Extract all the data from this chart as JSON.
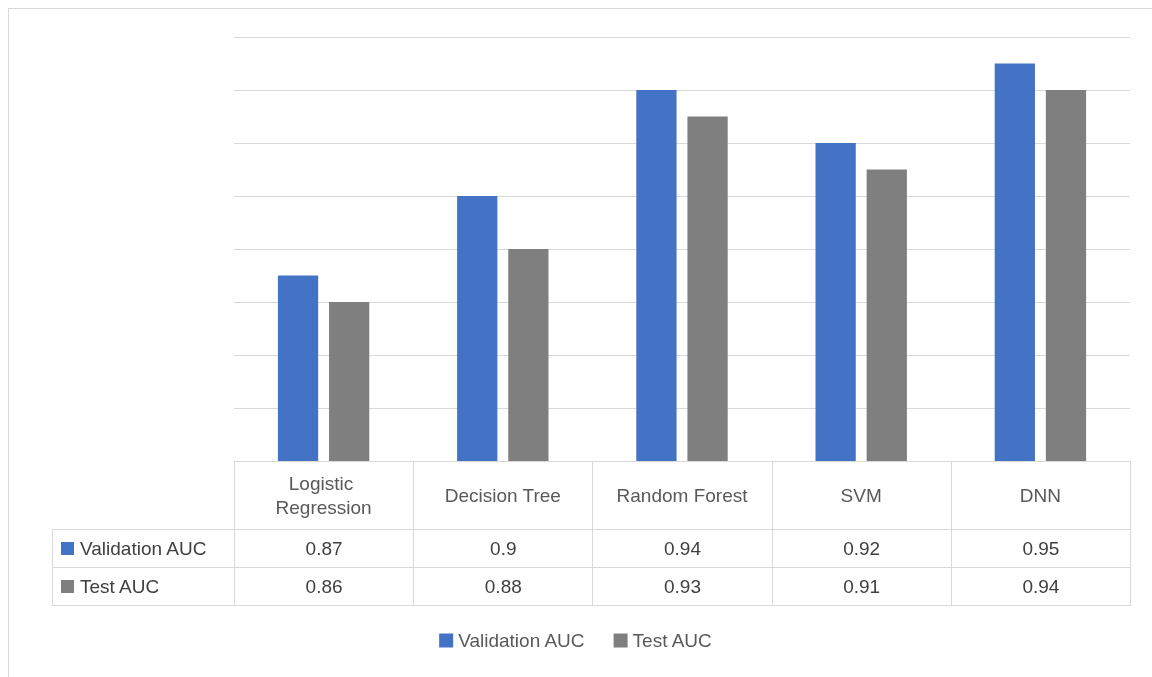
{
  "chart_data": {
    "type": "bar",
    "categories": [
      "Logistic Regression",
      "Decision Tree",
      "Random Forest",
      "SVM",
      "DNN"
    ],
    "series": [
      {
        "name": "Validation AUC",
        "color": "#4472c4",
        "values": [
          0.87,
          0.9,
          0.94,
          0.92,
          0.95
        ]
      },
      {
        "name": "Test AUC",
        "color": "#7f7f7f",
        "values": [
          0.86,
          0.88,
          0.93,
          0.91,
          0.94
        ]
      }
    ],
    "ylim": [
      0.8,
      0.96
    ],
    "yticks": [
      {
        "value": 0.8,
        "label": null
      },
      {
        "value": 0.82,
        "label": null
      },
      {
        "value": 0.84,
        "label": null
      },
      {
        "value": 0.86,
        "label": null
      },
      {
        "value": 0.88,
        "label": null
      },
      {
        "value": 0.9,
        "label": null
      },
      {
        "value": 0.92,
        "label": null
      },
      {
        "value": 0.94,
        "label": null
      },
      {
        "value": 0.96,
        "label": null
      }
    ],
    "tick_labels": "x",
    "grid": "y",
    "legend": "bottom",
    "data_labels": true
  }
}
